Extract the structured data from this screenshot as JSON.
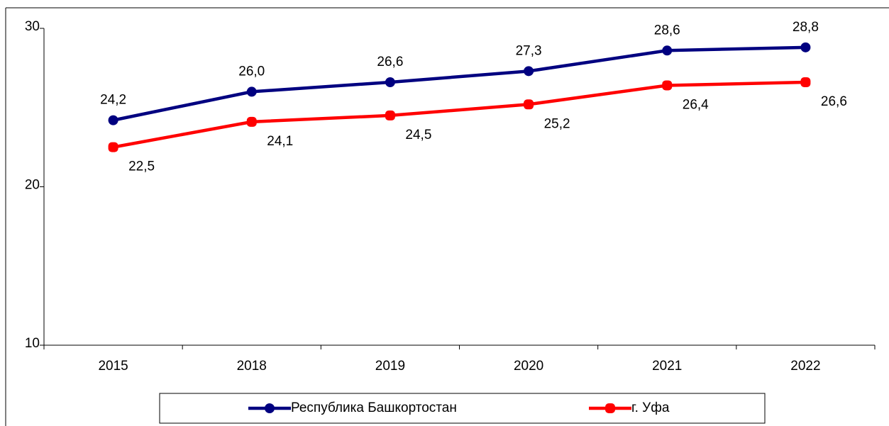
{
  "chart_data": {
    "type": "line",
    "categories": [
      "2015",
      "2018",
      "2019",
      "2020",
      "2021",
      "2022"
    ],
    "series": [
      {
        "name": "Республика Башкортостан",
        "color": "#000080",
        "values": [
          24.2,
          26.0,
          26.6,
          27.3,
          28.6,
          28.8
        ],
        "value_labels": [
          "24,2",
          "26,0",
          "26,6",
          "27,3",
          "28,6",
          "28,8"
        ]
      },
      {
        "name": "г. Уфа",
        "color": "#ff0000",
        "values": [
          22.5,
          24.1,
          24.5,
          25.2,
          26.4,
          26.6
        ],
        "value_labels": [
          "22,5",
          "24,1",
          "24,5",
          "25,2",
          "26,4",
          "26,6"
        ]
      }
    ],
    "ylim": [
      10,
      30
    ],
    "yticks": [
      10,
      20,
      30
    ],
    "grid": false,
    "legend": "bottom"
  }
}
